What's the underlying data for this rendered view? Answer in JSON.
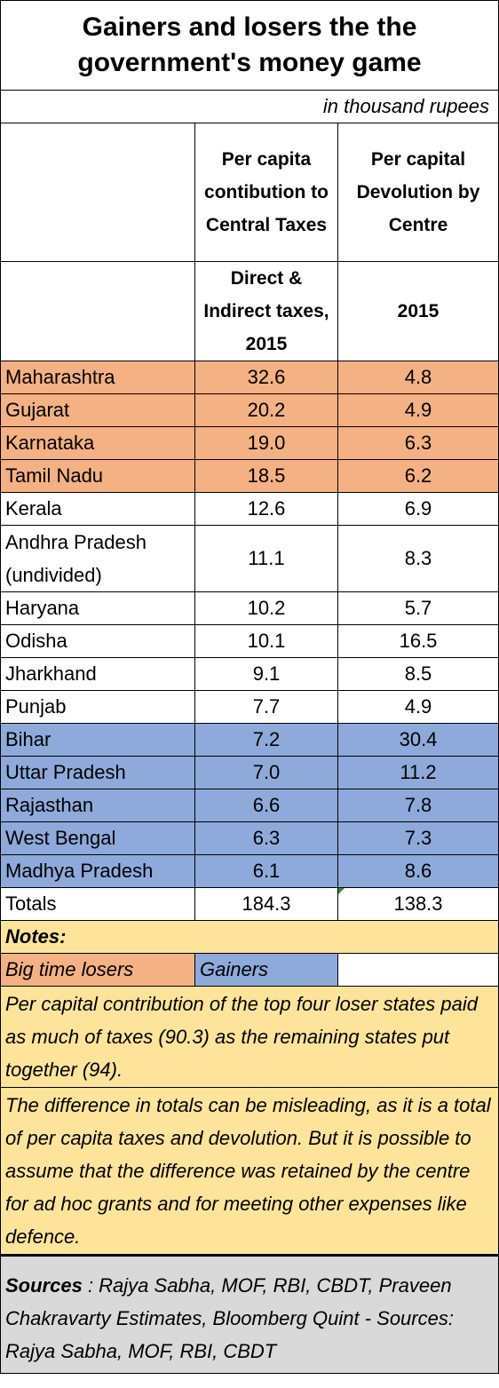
{
  "title": "Gainers and losers the the government's money game",
  "unit_note": "in thousand rupees",
  "columns": {
    "col1_header": "Per capita contibution to Central Taxes",
    "col2_header": "Per capital Devolution by Centre",
    "col1_subheader": "Direct & Indirect taxes, 2015",
    "col2_subheader": "2015"
  },
  "rows": [
    {
      "state": "Maharashtra",
      "contribution": "32.6",
      "devolution": "4.8",
      "group": "loser"
    },
    {
      "state": "Gujarat",
      "contribution": "20.2",
      "devolution": "4.9",
      "group": "loser"
    },
    {
      "state": "Karnataka",
      "contribution": "19.0",
      "devolution": "6.3",
      "group": "loser"
    },
    {
      "state": "Tamil Nadu",
      "contribution": "18.5",
      "devolution": "6.2",
      "group": "loser"
    },
    {
      "state": "Kerala",
      "contribution": "12.6",
      "devolution": "6.9",
      "group": "none"
    },
    {
      "state": "Andhra Pradesh (undivided)",
      "contribution": "11.1",
      "devolution": "8.3",
      "group": "none"
    },
    {
      "state": "Haryana",
      "contribution": "10.2",
      "devolution": "5.7",
      "group": "none"
    },
    {
      "state": "Odisha",
      "contribution": "10.1",
      "devolution": "16.5",
      "group": "none"
    },
    {
      "state": "Jharkhand",
      "contribution": "9.1",
      "devolution": "8.5",
      "group": "none"
    },
    {
      "state": "Punjab",
      "contribution": "7.7",
      "devolution": "4.9",
      "group": "none"
    },
    {
      "state": "Bihar",
      "contribution": "7.2",
      "devolution": "30.4",
      "group": "gainer"
    },
    {
      "state": "Uttar Pradesh",
      "contribution": "7.0",
      "devolution": "11.2",
      "group": "gainer"
    },
    {
      "state": "Rajasthan",
      "contribution": "6.6",
      "devolution": "7.8",
      "group": "gainer"
    },
    {
      "state": "West Bengal",
      "contribution": "6.3",
      "devolution": "7.3",
      "group": "gainer"
    },
    {
      "state": "Madhya Pradesh",
      "contribution": "6.1",
      "devolution": "8.6",
      "group": "gainer"
    }
  ],
  "totals": {
    "label": "Totals",
    "contribution": "184.3",
    "devolution": "138.3"
  },
  "notes": {
    "title": "Notes:",
    "legend_losers": "Big time losers",
    "legend_gainers": "Gainers",
    "note1": "Per capital contribution of the top four loser states paid as much of taxes (90.3) as the remaining states put together (94).",
    "note2": "The difference in totals can be misleading, as it is a total of per capita taxes and devolution.  But it is possible to assume that the difference was retained by the centre for ad hoc grants and for meeting other expenses like defence."
  },
  "sources": {
    "label": "Sources",
    "text": " : Rajya Sabha, MOF, RBI, CBDT, Praveen Chakravarty Estimates, Bloomberg Quint - Sources: Rajya Sabha, MOF, RBI, CBDT"
  },
  "colors": {
    "loser": "#f4b183",
    "gainer": "#8eaadb",
    "notes": "#fde49a",
    "sources": "#d9d9d9"
  }
}
